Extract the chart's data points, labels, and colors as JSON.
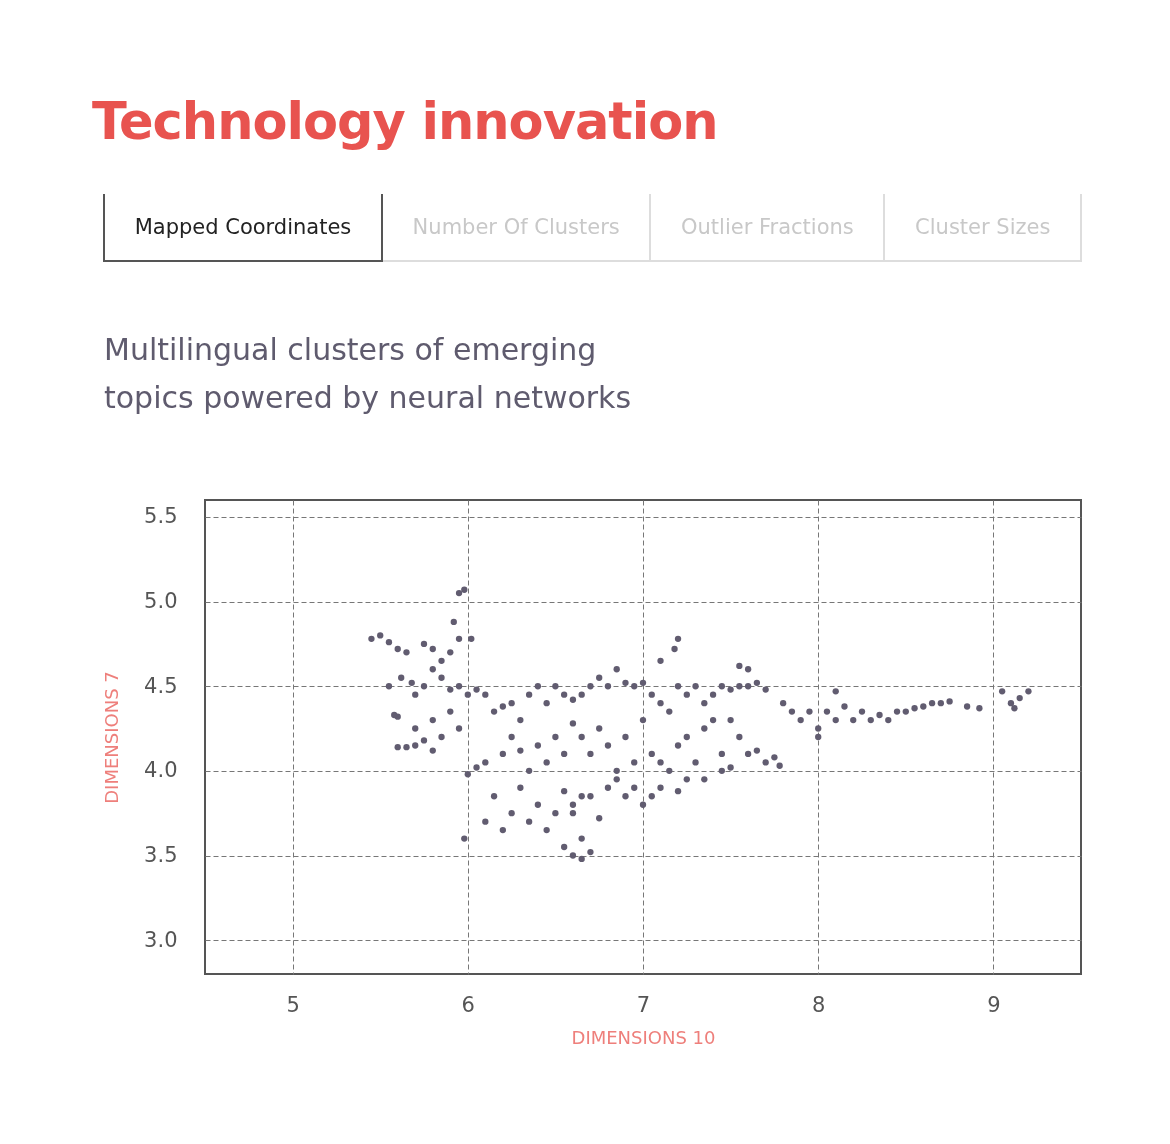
{
  "chart_data": {
    "type": "scatter",
    "title": "Technology innovation",
    "subtitle": "Multilingual clusters of emerging topics powered by neural networks",
    "annotations": [
      "Mapped Coordinates",
      "Number Of Clusters",
      "Outlier Fractions",
      "Cluster Sizes"
    ],
    "xlabel": "DIMENSIONS 10",
    "ylabel": "DIMENSIONS 7",
    "xlim": [
      4.5,
      9.5
    ],
    "xticks": [
      5,
      6,
      7,
      8,
      9
    ],
    "ylim": [
      2.8,
      5.6
    ],
    "yticks": [
      {
        "value": 3,
        "label": "3.0"
      },
      {
        "value": 3.5,
        "label": "3.5"
      },
      {
        "value": 4,
        "label": "4.0"
      },
      {
        "value": 4.5,
        "label": "4.5"
      },
      {
        "value": 5,
        "label": "5.0"
      },
      {
        "value": 5.5,
        "label": "5.5"
      }
    ],
    "grid": true,
    "marker": "circle",
    "x": [
      5.45,
      5.5,
      5.55,
      5.6,
      5.65,
      5.75,
      5.8,
      5.85,
      5.9,
      5.95,
      5.92,
      5.95,
      5.98,
      6.02,
      5.55,
      5.62,
      5.68,
      5.7,
      5.75,
      5.8,
      5.85,
      5.9,
      5.95,
      6.0,
      6.05,
      5.6,
      5.58,
      5.7,
      5.8,
      5.85,
      5.9,
      5.95,
      5.65,
      5.7,
      5.75,
      5.8,
      5.6,
      5.98,
      6.0,
      6.05,
      6.1,
      6.1,
      6.15,
      6.2,
      6.25,
      6.3,
      6.35,
      6.4,
      6.45,
      6.5,
      6.55,
      6.6,
      6.65,
      6.7,
      6.75,
      6.8,
      6.85,
      6.9,
      6.95,
      7.0,
      6.2,
      6.25,
      6.3,
      6.35,
      6.4,
      6.45,
      6.5,
      6.55,
      6.6,
      6.65,
      6.7,
      6.75,
      6.8,
      6.85,
      6.9,
      6.95,
      7.0,
      6.1,
      6.15,
      6.2,
      6.25,
      6.3,
      6.35,
      6.4,
      6.45,
      6.5,
      6.55,
      6.6,
      6.65,
      6.7,
      6.75,
      6.8,
      6.85,
      6.9,
      6.95,
      7.0,
      6.55,
      6.6,
      6.65,
      6.7,
      6.6,
      6.65,
      7.05,
      7.1,
      7.15,
      7.2,
      7.25,
      7.3,
      7.35,
      7.4,
      7.45,
      7.5,
      7.55,
      7.6,
      7.65,
      7.7,
      7.55,
      7.6,
      7.18,
      7.2,
      7.1,
      7.05,
      7.1,
      7.15,
      7.2,
      7.25,
      7.3,
      7.35,
      7.4,
      7.45,
      7.5,
      7.55,
      7.6,
      7.65,
      7.7,
      7.75,
      7.78,
      7.05,
      7.1,
      7.2,
      7.25,
      7.35,
      7.45,
      7.5,
      7.8,
      7.85,
      7.9,
      7.95,
      8.0,
      8.05,
      8.1,
      8.15,
      8.2,
      8.25,
      8.3,
      8.35,
      8.4,
      8.45,
      8.5,
      8.55,
      8.6,
      8.65,
      8.7,
      8.75,
      8.85,
      8.92,
      9.05,
      9.1,
      9.12,
      9.15,
      9.2,
      8.1,
      8.0
    ],
    "values": [
      4.78,
      4.8,
      4.76,
      4.72,
      4.7,
      4.75,
      4.72,
      4.65,
      4.7,
      4.78,
      4.88,
      5.05,
      5.07,
      4.78,
      4.5,
      4.55,
      4.52,
      4.45,
      4.5,
      4.6,
      4.55,
      4.48,
      4.5,
      4.45,
      4.48,
      4.32,
      4.33,
      4.25,
      4.3,
      4.2,
      4.35,
      4.25,
      4.14,
      4.15,
      4.18,
      4.12,
      4.14,
      3.6,
      3.98,
      4.02,
      4.05,
      4.45,
      4.35,
      4.38,
      4.4,
      4.3,
      4.45,
      4.5,
      4.4,
      4.5,
      4.45,
      4.42,
      4.45,
      4.5,
      4.55,
      4.5,
      4.6,
      4.52,
      4.5,
      4.52,
      4.1,
      4.2,
      4.12,
      4.0,
      4.15,
      4.05,
      4.2,
      4.1,
      4.28,
      4.2,
      4.1,
      4.25,
      4.15,
      4.0,
      4.2,
      4.05,
      4.3,
      3.7,
      3.85,
      3.65,
      3.75,
      3.9,
      3.7,
      3.8,
      3.65,
      3.75,
      3.88,
      3.8,
      3.85,
      3.85,
      3.72,
      3.9,
      3.95,
      3.85,
      3.9,
      3.8,
      3.55,
      3.5,
      3.48,
      3.52,
      3.75,
      3.6,
      4.45,
      4.4,
      4.35,
      4.5,
      4.45,
      4.5,
      4.4,
      4.45,
      4.5,
      4.48,
      4.5,
      4.5,
      4.52,
      4.48,
      4.62,
      4.6,
      4.72,
      4.78,
      4.65,
      4.1,
      4.05,
      4.0,
      4.15,
      4.2,
      4.05,
      4.25,
      4.3,
      4.1,
      4.3,
      4.2,
      4.1,
      4.12,
      4.05,
      4.08,
      4.03,
      3.85,
      3.9,
      3.88,
      3.95,
      3.95,
      4.0,
      4.02,
      4.4,
      4.35,
      4.3,
      4.35,
      4.25,
      4.35,
      4.3,
      4.38,
      4.3,
      4.35,
      4.3,
      4.33,
      4.3,
      4.35,
      4.35,
      4.37,
      4.38,
      4.4,
      4.4,
      4.41,
      4.38,
      4.37,
      4.47,
      4.4,
      4.37,
      4.43,
      4.47,
      4.47,
      4.2
    ],
    "color": "#615c70"
  }
}
